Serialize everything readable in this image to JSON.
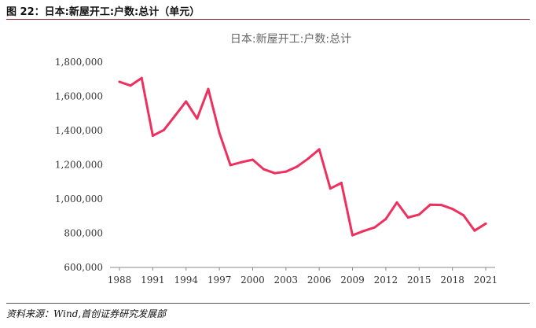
{
  "figure": {
    "caption": "图 22：日本:新屋开工:户数:总计（单元）",
    "source": "资料来源：Wind,首创证券研究发展部"
  },
  "chart_data": {
    "type": "line",
    "title": "日本:新屋开工:户数:总计",
    "xlabel": "",
    "ylabel": "",
    "x": [
      1988,
      1989,
      1990,
      1991,
      1992,
      1993,
      1994,
      1995,
      1996,
      1997,
      1998,
      1999,
      2000,
      2001,
      2002,
      2003,
      2004,
      2005,
      2006,
      2007,
      2008,
      2009,
      2010,
      2011,
      2012,
      2013,
      2014,
      2015,
      2016,
      2017,
      2018,
      2019,
      2020,
      2021
    ],
    "series": [
      {
        "values": [
          1685000,
          1663000,
          1707000,
          1370000,
          1403000,
          1486000,
          1570000,
          1470000,
          1643000,
          1387000,
          1198000,
          1215000,
          1230000,
          1174000,
          1151000,
          1160000,
          1189000,
          1236000,
          1290000,
          1061000,
          1094000,
          788000,
          813000,
          834000,
          883000,
          980000,
          892000,
          909000,
          967000,
          965000,
          942000,
          905000,
          815000,
          856000
        ],
        "color": "#ef2f5e"
      }
    ],
    "xticks": [
      1988,
      1991,
      1994,
      1997,
      2000,
      2003,
      2006,
      2009,
      2012,
      2015,
      2018,
      2021
    ],
    "yticks": [
      600000,
      800000,
      1000000,
      1200000,
      1400000,
      1600000,
      1800000
    ],
    "ytick_labels": [
      "600,000",
      "800,000",
      "1,000,000",
      "1,200,000",
      "1,400,000",
      "1,600,000",
      "1,800,000"
    ],
    "xlim": [
      1988,
      2021
    ],
    "ylim": [
      600000,
      1800000
    ],
    "grid": false,
    "legend": "none"
  }
}
